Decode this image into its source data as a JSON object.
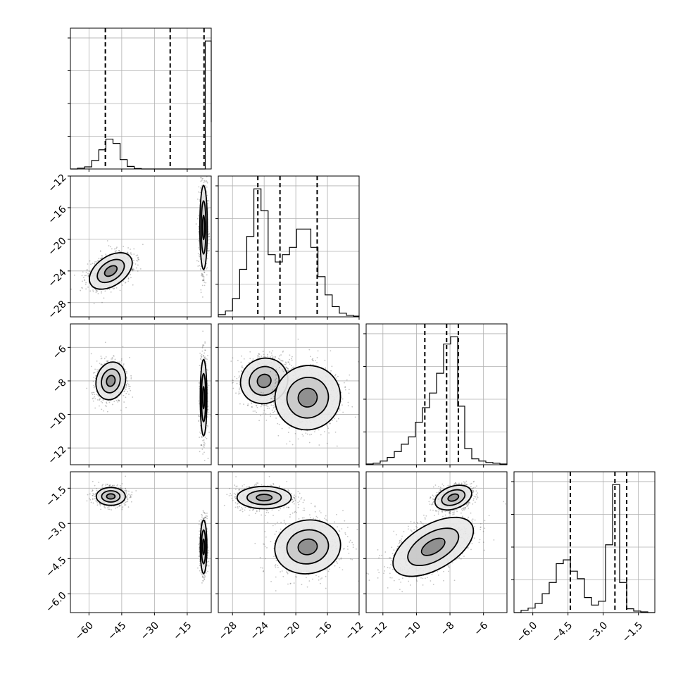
{
  "chart_data": {
    "type": "corner",
    "parameters": [
      {
        "ticks": [
          -60,
          -45,
          -30,
          -15
        ],
        "tick_labels": [
          "−60",
          "−45",
          "−30",
          "−15"
        ],
        "range": [
          -68.5,
          -4
        ]
      },
      {
        "ticks": [
          -28,
          -24,
          -20,
          -16,
          -12
        ],
        "tick_labels": [
          "−28",
          "−24",
          "−20",
          "−16",
          "−12"
        ],
        "range": [
          -29.8,
          -12
        ]
      },
      {
        "ticks": [
          -12,
          -10,
          -8,
          -6
        ],
        "tick_labels": [
          "−12",
          "−10",
          "−8",
          "−6"
        ],
        "range": [
          -13,
          -4.6
        ]
      },
      {
        "ticks": [
          -6.0,
          -4.5,
          -3.0,
          -1.5
        ],
        "tick_labels": [
          "−6.0",
          "−4.5",
          "−3.0",
          "−1.5"
        ],
        "range": [
          -6.8,
          -0.8
        ]
      }
    ],
    "quantiles": [
      [
        -52.5,
        -22.8,
        -7.3
      ],
      [
        -24.8,
        -22.0,
        -17.3
      ],
      [
        -9.5,
        -8.2,
        -7.5
      ],
      [
        -4.4,
        -2.5,
        -2.0
      ]
    ],
    "histograms": [
      {
        "edges": [
          -68.5,
          -65.25,
          -62.0,
          -58.75,
          -55.5,
          -52.25,
          -49.0,
          -45.75,
          -42.5,
          -39.25,
          -36.0,
          -32.75,
          -29.5,
          -26.25,
          -23.0,
          -19.75,
          -16.5,
          -13.25,
          -10.0,
          -6.75,
          -4.0
        ],
        "counts": [
          0,
          2,
          5,
          20,
          45,
          70,
          60,
          22,
          6,
          1,
          0,
          0,
          0,
          0,
          0,
          0,
          0,
          0,
          0,
          300,
          110
        ]
      },
      {
        "edges": [
          -29.8,
          -28.9,
          -28.0,
          -27.1,
          -26.2,
          -25.3,
          -24.4,
          -23.5,
          -22.6,
          -21.7,
          -20.8,
          -19.9,
          -19.0,
          -18.1,
          -17.2,
          -16.3,
          -15.4,
          -14.5,
          -13.6,
          -12.7,
          -12.0
        ],
        "counts": [
          3,
          8,
          25,
          65,
          110,
          175,
          145,
          85,
          75,
          85,
          95,
          120,
          120,
          95,
          55,
          30,
          14,
          5,
          2,
          1
        ]
      },
      {
        "edges": [
          -13.0,
          -12.58,
          -12.16,
          -11.74,
          -11.32,
          -10.9,
          -10.48,
          -10.06,
          -9.64,
          -9.22,
          -8.8,
          -8.38,
          -7.96,
          -7.54,
          -7.12,
          -6.7,
          -6.28,
          -5.86,
          -5.44,
          -5.02,
          -4.6
        ],
        "counts": [
          1,
          2,
          5,
          10,
          18,
          28,
          38,
          58,
          78,
          98,
          125,
          165,
          175,
          80,
          22,
          8,
          5,
          3,
          2,
          1
        ]
      },
      {
        "edges": [
          -6.8,
          -6.5,
          -6.2,
          -5.9,
          -5.6,
          -5.3,
          -5.0,
          -4.7,
          -4.4,
          -4.1,
          -3.8,
          -3.5,
          -3.2,
          -2.9,
          -2.6,
          -2.3,
          -2.0,
          -1.7,
          -1.4,
          -1.1,
          -0.8
        ],
        "counts": [
          0,
          3,
          6,
          12,
          25,
          40,
          65,
          70,
          55,
          45,
          20,
          10,
          15,
          90,
          170,
          40,
          5,
          2,
          1,
          0
        ]
      }
    ],
    "clusters": [
      {
        "pair": [
          0,
          1
        ],
        "blobs": [
          {
            "cx": -50,
            "cy": -24,
            "sx": 3.5,
            "sy": 1.6,
            "rot": -55,
            "n": 900
          },
          {
            "cx": -7.5,
            "cy": -18.5,
            "sx": 0.9,
            "sy": 2.8,
            "rot": 0,
            "n": 800
          }
        ]
      },
      {
        "pair": [
          0,
          2
        ],
        "blobs": [
          {
            "cx": -50,
            "cy": -8,
            "sx": 3.5,
            "sy": 0.6,
            "rot": -15,
            "n": 900
          },
          {
            "cx": -7.5,
            "cy": -9,
            "sx": 0.8,
            "sy": 1.2,
            "rot": 0,
            "n": 800
          }
        ]
      },
      {
        "pair": [
          0,
          3
        ],
        "blobs": [
          {
            "cx": -50,
            "cy": -1.85,
            "sx": 3.5,
            "sy": 0.2,
            "rot": 0,
            "n": 900
          },
          {
            "cx": -7.5,
            "cy": -4,
            "sx": 0.8,
            "sy": 0.6,
            "rot": 0,
            "n": 800
          }
        ]
      },
      {
        "pair": [
          1,
          2
        ],
        "blobs": [
          {
            "cx": -24,
            "cy": -8,
            "sx": 1.6,
            "sy": 0.7,
            "rot": 30,
            "n": 900
          },
          {
            "cx": -18.5,
            "cy": -9,
            "sx": 2.2,
            "sy": 1.0,
            "rot": 30,
            "n": 900
          }
        ]
      },
      {
        "pair": [
          1,
          3
        ],
        "blobs": [
          {
            "cx": -24,
            "cy": -1.9,
            "sx": 1.8,
            "sy": 0.25,
            "rot": 0,
            "n": 900
          },
          {
            "cx": -18.5,
            "cy": -4,
            "sx": 2.2,
            "sy": 0.6,
            "rot": 10,
            "n": 900
          }
        ]
      },
      {
        "pair": [
          2,
          3
        ],
        "blobs": [
          {
            "cx": -7.8,
            "cy": -1.9,
            "sx": 0.6,
            "sy": 0.25,
            "rot": 20,
            "n": 900
          },
          {
            "cx": -9,
            "cy": -4,
            "sx": 1.4,
            "sy": 0.5,
            "rot": 30,
            "n": 900
          }
        ]
      }
    ],
    "colors": {
      "points": "#555555",
      "lines": "#000000",
      "grid": "#b0b0b0"
    }
  }
}
